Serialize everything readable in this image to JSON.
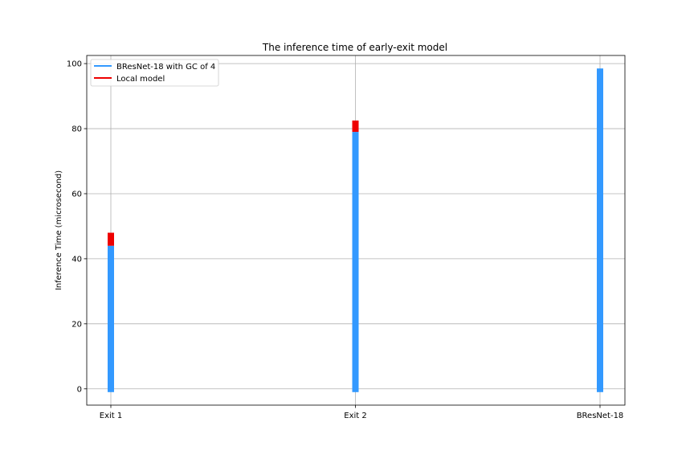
{
  "chart_data": {
    "type": "bar",
    "title": "The inference time of early-exit model",
    "xlabel": "",
    "ylabel": "Inference Time (microsecond)",
    "categories": [
      "Exit 1",
      "Exit 2",
      "BResNet-18"
    ],
    "ylim": [
      -5,
      102.5
    ],
    "yticks": [
      0,
      20,
      40,
      60,
      80,
      100
    ],
    "grid": true,
    "legend_position": "top-left",
    "series": [
      {
        "name": "BResNet-18 with GC of 4",
        "color": "#3399ff",
        "bottom": [
          -1,
          -1,
          -1
        ],
        "top": [
          44,
          79,
          98.5
        ]
      },
      {
        "name": "Local model",
        "color": "#ee0000",
        "bottom": [
          44,
          79,
          null
        ],
        "top": [
          48,
          82.5,
          null
        ]
      }
    ]
  }
}
